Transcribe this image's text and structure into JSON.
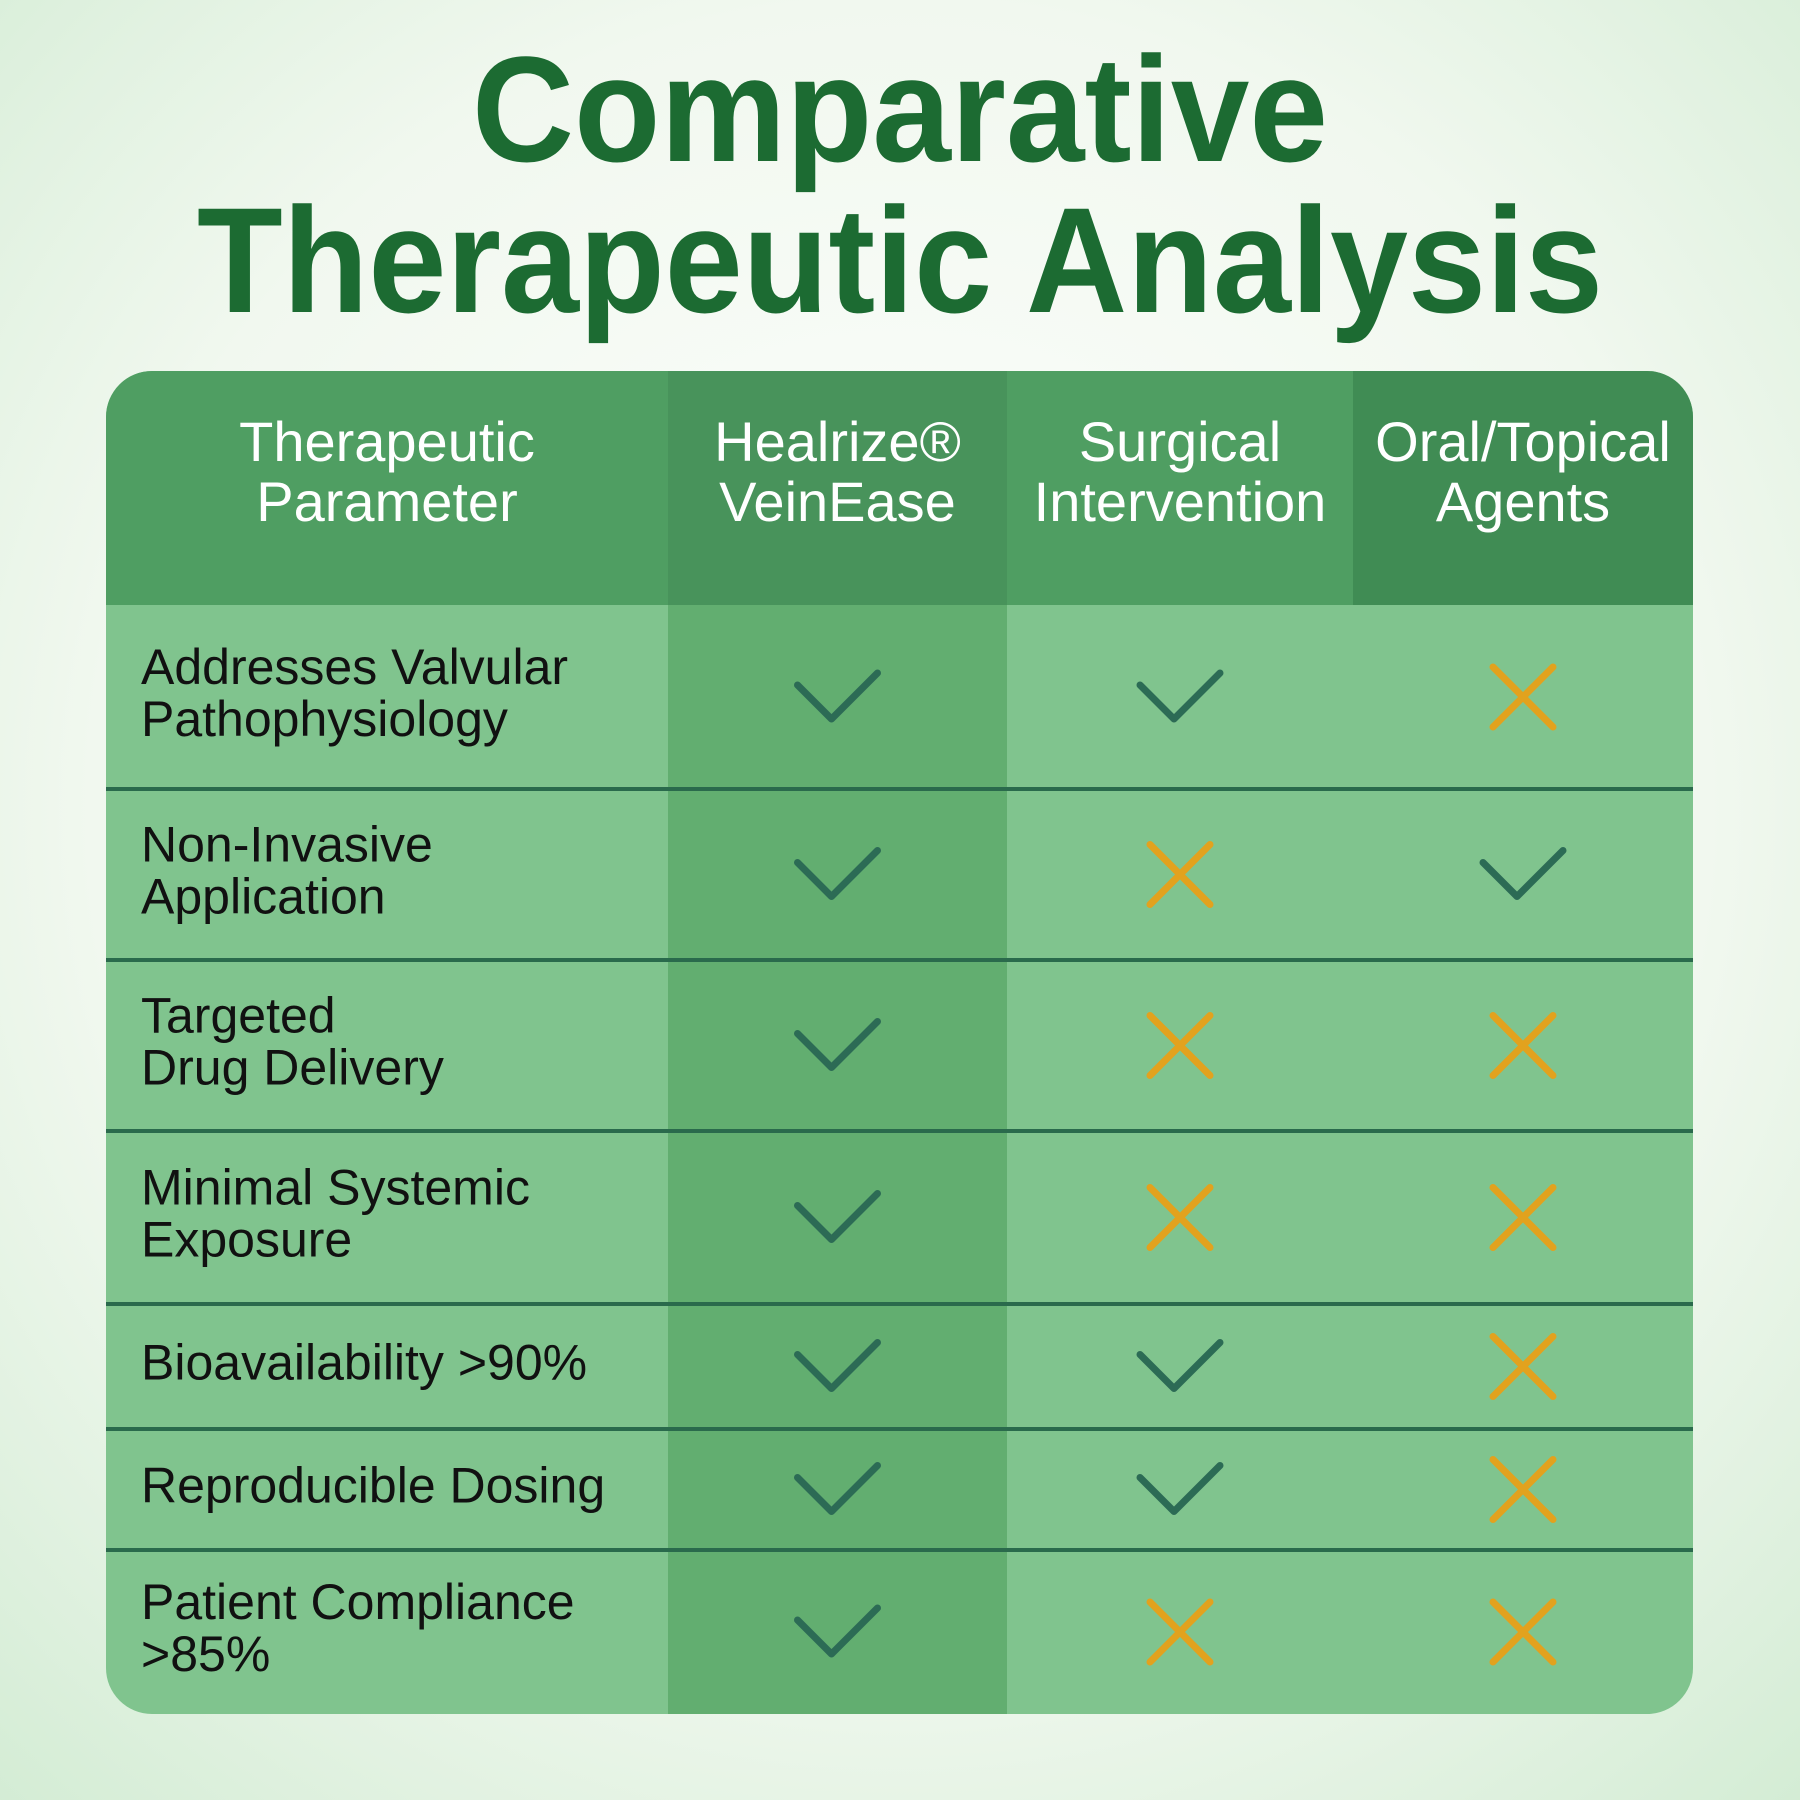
{
  "title": [
    "Comparative",
    "Therapeutic Analysis"
  ],
  "table": {
    "header": [
      [
        "Therapeutic",
        "Parameter"
      ],
      [
        "Healrize®",
        "VeinEase"
      ],
      [
        "Surgical",
        "Intervention"
      ],
      [
        "Oral/Topical",
        "Agents"
      ]
    ],
    "rows": [
      {
        "parameter": [
          "Addresses Valvular",
          "Pathophysiology"
        ],
        "values": [
          true,
          true,
          false
        ]
      },
      {
        "parameter": [
          "Non-Invasive",
          "Application"
        ],
        "values": [
          true,
          false,
          true
        ]
      },
      {
        "parameter": [
          "Targeted",
          "Drug Delivery"
        ],
        "values": [
          true,
          false,
          false
        ]
      },
      {
        "parameter": [
          "Minimal Systemic",
          "Exposure"
        ],
        "values": [
          true,
          false,
          false
        ]
      },
      {
        "parameter": [
          "Bioavailability >90%"
        ],
        "values": [
          true,
          true,
          false
        ]
      },
      {
        "parameter": [
          "Reproducible Dosing"
        ],
        "values": [
          true,
          true,
          false
        ]
      },
      {
        "parameter": [
          "Patient Compliance",
          ">85%"
        ],
        "values": [
          true,
          false,
          false
        ]
      }
    ]
  }
}
